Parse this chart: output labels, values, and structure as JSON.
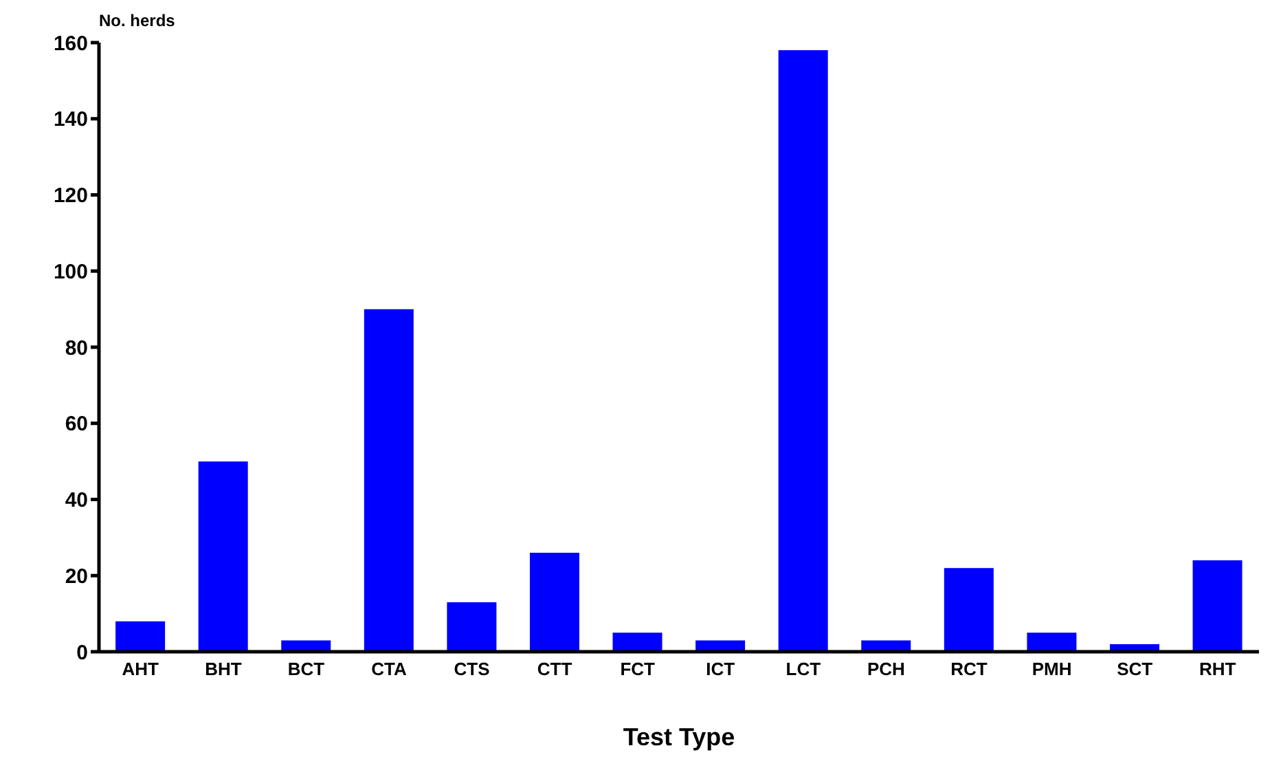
{
  "chart_data": {
    "type": "bar",
    "xlabel": "Test Type",
    "ylabel": "No. herds",
    "categories": [
      "AHT",
      "BHT",
      "BCT",
      "CTA",
      "CTS",
      "CTT",
      "FCT",
      "ICT",
      "LCT",
      "PCH",
      "RCT",
      "PMH",
      "SCT",
      "RHT"
    ],
    "values": [
      8,
      50,
      3,
      90,
      13,
      26,
      5,
      3,
      158,
      3,
      22,
      5,
      2,
      24
    ],
    "color": "#0000ff",
    "ylim": [
      0,
      160
    ],
    "yticks": [
      0,
      20,
      40,
      60,
      80,
      100,
      120,
      140,
      160
    ],
    "grid": false,
    "legend": false
  }
}
